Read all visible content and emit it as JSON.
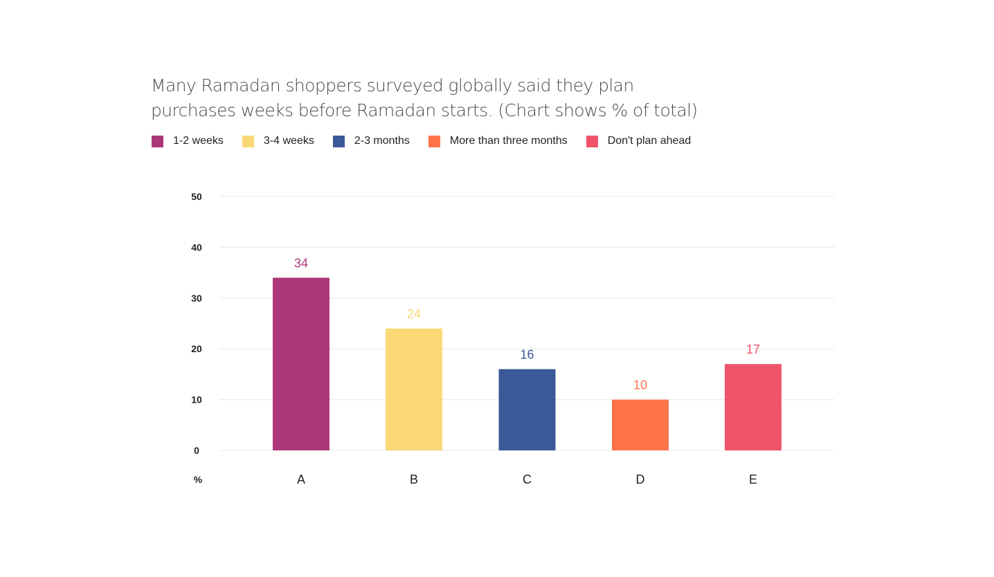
{
  "title_lines": [
    "Many Ramadan shoppers surveyed globally said they plan",
    "purchases weeks before Ramadan starts. (Chart shows % of total)"
  ],
  "legend": [
    {
      "label": "1-2 weeks",
      "color": "#ac3778"
    },
    {
      "label": "3-4 weeks",
      "color": "#fbd876"
    },
    {
      "label": "2-3 months",
      "color": "#3b5898"
    },
    {
      "label": "More than three months",
      "color": "#ff734a"
    },
    {
      "label": "Don't plan ahead",
      "color": "#f0546a"
    }
  ],
  "chart_data": {
    "type": "bar",
    "title": "Many Ramadan shoppers surveyed globally said they plan purchases weeks before Ramadan starts. (Chart shows % of total)",
    "categories": [
      "A",
      "B",
      "C",
      "D",
      "E"
    ],
    "values": [
      34,
      24,
      16,
      10,
      17
    ],
    "colors": [
      "#ac3778",
      "#fbd876",
      "#3b5898",
      "#ff734a",
      "#f0546a"
    ],
    "series_names": [
      "1-2 weeks",
      "3-4 weeks",
      "2-3 months",
      "More than three months",
      "Don't plan ahead"
    ],
    "data_labels": [
      "34",
      "24",
      "16",
      "10",
      "17"
    ],
    "yticks": [
      0,
      10,
      20,
      30,
      40,
      50
    ],
    "ylim": [
      0,
      50
    ],
    "ylabel": "%",
    "xlabel": "",
    "grid": true,
    "legend_position": "top-left"
  }
}
